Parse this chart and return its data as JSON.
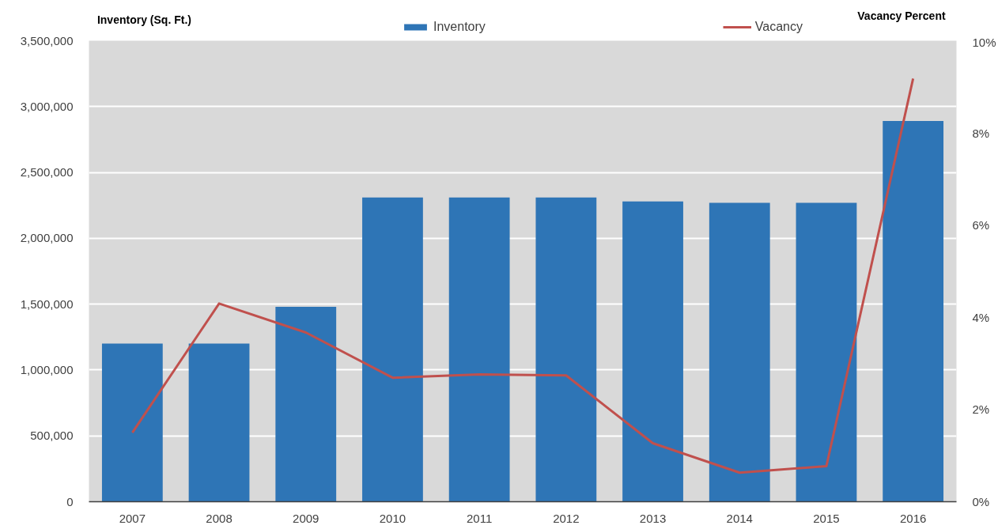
{
  "chart_data": {
    "type": "bar",
    "ylabel": "Inventory (Sq. Ft.)",
    "y2label": "Vacancy Percent",
    "categories": [
      "2007",
      "2008",
      "2009",
      "2010",
      "2011",
      "2012",
      "2013",
      "2014",
      "2015",
      "2016"
    ],
    "series": [
      {
        "name": "Inventory",
        "color": "#2e75b6",
        "values": [
          1200000,
          1200000,
          1480000,
          2310000,
          2310000,
          2310000,
          2280000,
          2270000,
          2270000,
          2890000
        ]
      },
      {
        "name": "Vacancy",
        "type": "line",
        "axis": "y2",
        "color": "#c0504d",
        "values": [
          1.5,
          4.3,
          3.67,
          2.69,
          2.76,
          2.74,
          1.27,
          0.63,
          0.77,
          9.18
        ]
      }
    ],
    "ylim": [
      0,
      3500000
    ],
    "yticks": [
      0,
      {
        "value": 500000,
        "label": "500,000"
      },
      {
        "value": 1000000,
        "label": "1,000,000"
      },
      {
        "value": 1500000,
        "label": "1,500,000"
      },
      {
        "value": 2000000,
        "label": "2,000,000"
      },
      {
        "value": 2500000,
        "label": "2,500,000"
      },
      {
        "value": 3000000,
        "label": "3,000,000"
      },
      {
        "value": 3500000,
        "label": "3,500,000"
      }
    ],
    "y2lim": [
      0,
      10
    ],
    "y2ticks": [
      {
        "value": 0,
        "label": "0%"
      },
      {
        "value": 2,
        "label": "2%"
      },
      {
        "value": 4,
        "label": "4%"
      },
      {
        "value": 6,
        "label": "6%"
      },
      {
        "value": 8,
        "label": "8%"
      },
      {
        "value": 10,
        "label": "10%"
      }
    ],
    "grid": "y",
    "legend": "top"
  }
}
